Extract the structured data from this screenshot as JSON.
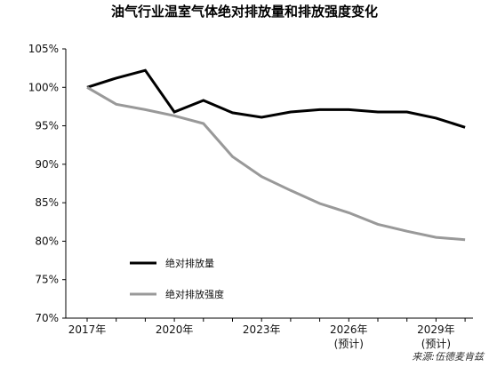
{
  "source": "来源:伍德麦肯兹",
  "chart_data": {
    "type": "line",
    "title": "油气行业温室气体绝对排放量和排放强度变化",
    "xlabel": "",
    "ylabel": "",
    "x": [
      2017,
      2018,
      2019,
      2020,
      2021,
      2022,
      2023,
      2024,
      2025,
      2026,
      2027,
      2028,
      2029,
      2030
    ],
    "x_tick_labels": [
      {
        "x": 2017,
        "label": "2017年",
        "sub": ""
      },
      {
        "x": 2020,
        "label": "2020年",
        "sub": ""
      },
      {
        "x": 2023,
        "label": "2023年",
        "sub": ""
      },
      {
        "x": 2026,
        "label": "2026年",
        "sub": "(预计)"
      },
      {
        "x": 2029,
        "label": "2029年",
        "sub": "(预计)"
      }
    ],
    "ylim": [
      70,
      105
    ],
    "y_ticks": [
      70,
      75,
      80,
      85,
      90,
      95,
      100,
      105
    ],
    "y_tick_format": "%",
    "grid": false,
    "legend_position": "lower-left",
    "series": [
      {
        "name": "绝对排放量",
        "color": "#000000",
        "values": [
          100,
          101.2,
          102.2,
          96.8,
          98.3,
          96.7,
          96.1,
          96.8,
          97.1,
          97.1,
          96.8,
          96.8,
          96.0,
          94.8
        ]
      },
      {
        "name": "绝对排放强度",
        "color": "#999999",
        "values": [
          100,
          97.8,
          97.1,
          96.3,
          95.3,
          91.0,
          88.4,
          86.6,
          84.9,
          83.7,
          82.2,
          81.3,
          80.5,
          80.2
        ]
      }
    ]
  }
}
